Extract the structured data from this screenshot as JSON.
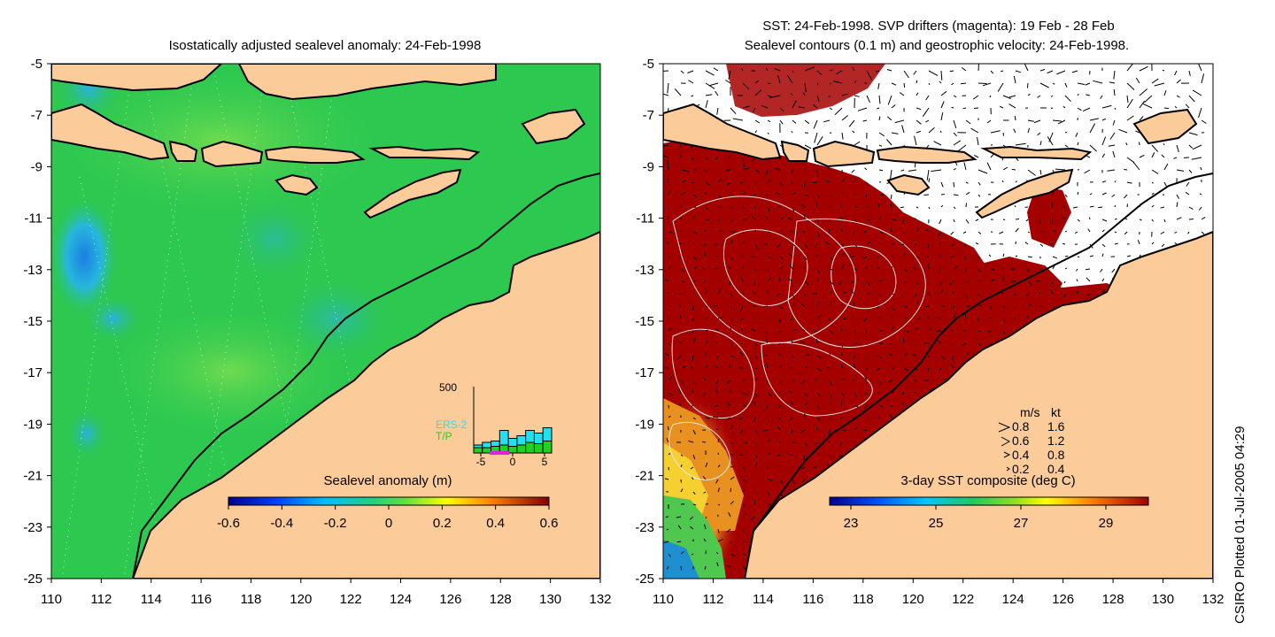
{
  "colors": {
    "land": "#FCCB9A",
    "sla_sea": "#2DC850",
    "sla_sea_light": "#46D35A",
    "sla_low": "#1E9EE8",
    "sst_sea": "#A50000",
    "sst_warm": "#E9A020",
    "sst_cool": "#50C850",
    "coast": "#000000",
    "contour": "#E8E8E8",
    "ers2": "#22E0F0",
    "tp": "#1ED21E",
    "drifter": "#E020E0"
  },
  "chart_data": [
    {
      "type": "heatmap",
      "title": "Isostatically adjusted sealevel anomaly: 24-Feb-1998",
      "xlabel": "",
      "ylabel": "",
      "xlim": [
        110,
        132
      ],
      "ylim": [
        -25,
        -5
      ],
      "xticks": [
        "110",
        "112",
        "114",
        "116",
        "118",
        "120",
        "122",
        "124",
        "126",
        "128",
        "130",
        "132"
      ],
      "yticks": [
        "-5",
        "-7",
        "-9",
        "-11",
        "-13",
        "-15",
        "-17",
        "-19",
        "-21",
        "-23",
        "-25"
      ],
      "colorbar": {
        "label": "Sealevel anomaly (m)",
        "range": [
          -0.6,
          0.6
        ],
        "ticks": [
          "-0.6",
          "-0.4",
          "-0.2",
          "0",
          "0.2",
          "0.4",
          "0.6"
        ]
      },
      "features": [
        {
          "name": "low anomaly",
          "lon": 111.3,
          "lat": -12.7,
          "value": -0.25
        },
        {
          "name": "low anomaly",
          "lon": 112.5,
          "lat": -15.0,
          "value": -0.2
        },
        {
          "name": "low anomaly",
          "lon": 111.5,
          "lat": -19.5,
          "value": -0.15
        }
      ],
      "inset": {
        "type": "bar",
        "ymax_label": "500",
        "xticks": [
          "-5",
          "0",
          "5"
        ],
        "series": [
          {
            "name": "ERS-2",
            "values": [
              60,
              80,
              90,
              170,
              110,
              130,
              170,
              150,
              190
            ]
          },
          {
            "name": "T/P",
            "values": [
              40,
              40,
              50,
              60,
              50,
              60,
              80,
              70,
              90
            ]
          }
        ]
      }
    },
    {
      "type": "heatmap",
      "title_line1": "SST: 24-Feb-1998. SVP drifters (magenta): 19 Feb - 28 Feb",
      "title_line2": "Sealevel contours (0.1 m) and geostrophic velocity: 24-Feb-1998.",
      "xlim": [
        110,
        132
      ],
      "ylim": [
        -25,
        -5
      ],
      "xticks": [
        "110",
        "112",
        "114",
        "116",
        "118",
        "120",
        "122",
        "124",
        "126",
        "128",
        "130",
        "132"
      ],
      "yticks": [
        "-5",
        "-7",
        "-9",
        "-11",
        "-13",
        "-15",
        "-17",
        "-19",
        "-21",
        "-23",
        "-25"
      ],
      "colorbar": {
        "label": "3-day SST composite (deg C)",
        "range": [
          22.5,
          30
        ],
        "ticks": [
          "23",
          "25",
          "27",
          "29"
        ]
      },
      "velocity_key": {
        "header_ms": "m/s",
        "header_kt": "kt",
        "rows": [
          {
            "ms": "0.8",
            "kt": "1.6"
          },
          {
            "ms": "0.6",
            "kt": "1.2"
          },
          {
            "ms": "0.4",
            "kt": "0.8"
          },
          {
            "ms": "0.2",
            "kt": "0.4"
          }
        ]
      }
    }
  ],
  "footer": {
    "plotted": "CSIRO Plotted 01-Jul-2005 04:29"
  }
}
